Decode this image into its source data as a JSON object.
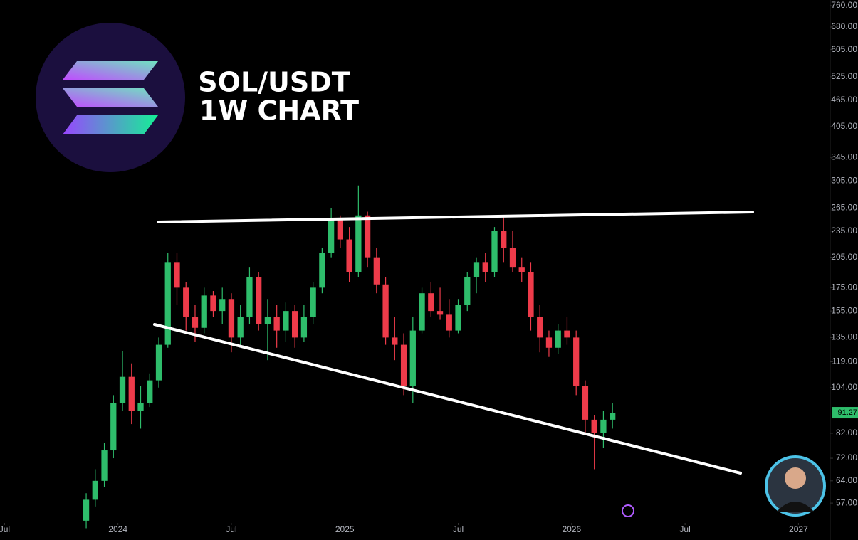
{
  "chart_data": {
    "type": "candlestick",
    "title": "SOL/USDT",
    "subtitle": "1W CHART",
    "x": [
      2023.86,
      2023.9,
      2023.94,
      2023.98,
      2024.02,
      2024.06,
      2024.1,
      2024.14,
      2024.18,
      2024.22,
      2024.26,
      2024.3,
      2024.34,
      2024.38,
      2024.42,
      2024.46,
      2024.5,
      2024.54,
      2024.58,
      2024.62,
      2024.66,
      2024.7,
      2024.74,
      2024.78,
      2024.82,
      2024.86,
      2024.9,
      2024.94,
      2024.98,
      2025.02,
      2025.06,
      2025.1,
      2025.14,
      2025.18,
      2025.22,
      2025.26,
      2025.3,
      2025.34,
      2025.38,
      2025.42,
      2025.46,
      2025.5,
      2025.54,
      2025.58,
      2025.62,
      2025.66,
      2025.7,
      2025.74,
      2025.78,
      2025.82,
      2025.86,
      2025.9,
      2025.94,
      2025.98,
      2026.02,
      2026.06,
      2026.1,
      2026.14,
      2026.18
    ],
    "open": [
      52,
      58,
      64,
      75,
      96,
      110,
      92,
      96,
      108,
      130,
      200,
      175,
      150,
      142,
      168,
      155,
      165,
      135,
      150,
      185,
      145,
      150,
      140,
      155,
      135,
      150,
      175,
      210,
      250,
      225,
      190,
      255,
      205,
      178,
      135,
      130,
      105,
      140,
      170,
      155,
      152,
      140,
      160,
      185,
      200,
      190,
      235,
      215,
      195,
      190,
      150,
      135,
      128,
      140,
      135,
      105,
      88,
      82,
      88
    ],
    "high": [
      60,
      68,
      78,
      100,
      126,
      118,
      105,
      112,
      135,
      210,
      210,
      180,
      160,
      175,
      172,
      175,
      170,
      160,
      195,
      190,
      165,
      160,
      162,
      160,
      160,
      180,
      215,
      265,
      255,
      240,
      298,
      260,
      215,
      185,
      150,
      138,
      150,
      175,
      180,
      175,
      165,
      165,
      190,
      205,
      210,
      240,
      255,
      235,
      205,
      200,
      160,
      140,
      145,
      150,
      140,
      108,
      90,
      92,
      96
    ],
    "low": [
      50,
      56,
      62,
      72,
      92,
      86,
      84,
      94,
      104,
      128,
      160,
      140,
      132,
      138,
      150,
      145,
      125,
      130,
      145,
      140,
      120,
      128,
      132,
      128,
      132,
      145,
      170,
      205,
      215,
      180,
      185,
      195,
      170,
      130,
      120,
      100,
      96,
      138,
      150,
      148,
      135,
      138,
      155,
      170,
      180,
      185,
      200,
      190,
      180,
      140,
      125,
      122,
      124,
      130,
      100,
      82,
      68,
      76,
      84
    ],
    "close": [
      58,
      64,
      75,
      96,
      110,
      92,
      96,
      108,
      130,
      200,
      175,
      150,
      142,
      168,
      155,
      165,
      135,
      150,
      185,
      145,
      150,
      140,
      155,
      135,
      150,
      175,
      210,
      250,
      225,
      190,
      255,
      205,
      178,
      135,
      130,
      105,
      140,
      170,
      155,
      152,
      140,
      160,
      185,
      200,
      190,
      235,
      215,
      195,
      190,
      150,
      135,
      128,
      140,
      135,
      105,
      88,
      82,
      88,
      91.27
    ],
    "up_color": "#2ebd6b",
    "down_color": "#ee3b4a",
    "last_price": 91.27,
    "log_scale": true,
    "xlim": [
      2023.48,
      2027.14
    ],
    "xticks": [
      {
        "value": 2023.5,
        "label": "Jul"
      },
      2024,
      {
        "value": 2024.5,
        "label": "Jul"
      },
      2025,
      {
        "value": 2025.5,
        "label": "Jul"
      },
      2026,
      {
        "value": 2026.5,
        "label": "Jul"
      },
      2027
    ],
    "ylim": [
      51.4,
      783
    ],
    "yticks": [
      {
        "value": 57,
        "label": "57.00"
      },
      {
        "value": 64,
        "label": "64.00"
      },
      {
        "value": 72,
        "label": "72.00"
      },
      {
        "value": 82,
        "label": "82.00"
      },
      {
        "value": 104,
        "label": "104.00"
      },
      {
        "value": 119,
        "label": "119.00"
      },
      {
        "value": 135,
        "label": "135.00"
      },
      {
        "value": 155,
        "label": "155.00"
      },
      {
        "value": 175,
        "label": "175.00"
      },
      {
        "value": 205,
        "label": "205.00"
      },
      {
        "value": 235,
        "label": "235.00"
      },
      {
        "value": 265,
        "label": "265.00"
      },
      {
        "value": 305,
        "label": "305.00"
      },
      {
        "value": 345,
        "label": "345.00"
      },
      {
        "value": 405,
        "label": "405.00"
      },
      {
        "value": 465,
        "label": "465.00"
      },
      {
        "value": 525,
        "label": "525.00"
      },
      {
        "value": 605,
        "label": "605.00"
      },
      {
        "value": 680,
        "label": "680.00"
      },
      {
        "value": 760,
        "label": "760.00"
      }
    ]
  }
}
